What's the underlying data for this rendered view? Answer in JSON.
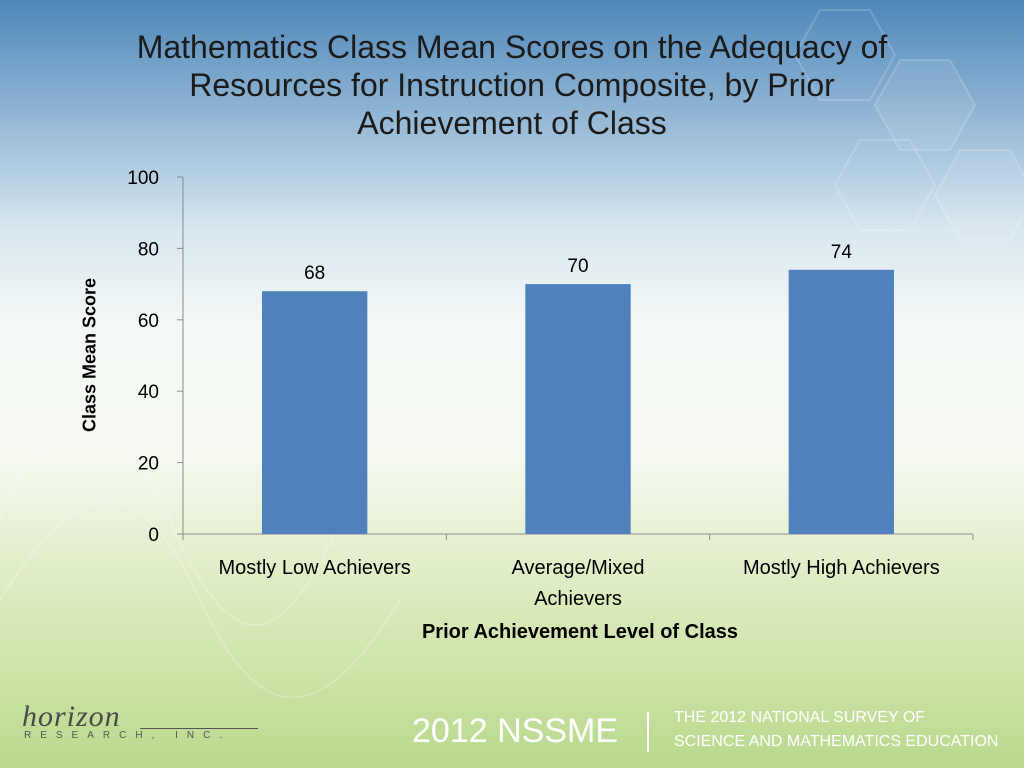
{
  "header": {
    "title_line1": "Mathematics Class Mean Scores on the Adequacy of",
    "title_line2": "Resources for Instruction Composite, by Prior",
    "title_line3": "Achievement of Class"
  },
  "chart_data": {
    "type": "bar",
    "title": "Mathematics Class Mean Scores on the Adequacy of Resources for Instruction Composite, by Prior Achievement of Class",
    "categories": [
      [
        "Mostly Low Achievers"
      ],
      [
        "Average/Mixed",
        "Achievers"
      ],
      [
        "Mostly High Achievers"
      ]
    ],
    "values": [
      68,
      70,
      74
    ],
    "data_labels": [
      "68",
      "70",
      "74"
    ],
    "xlabel": "Prior Achievement Level of Class",
    "ylabel": "Class Mean Score",
    "ylim": [
      0,
      100
    ],
    "yticks": [
      0,
      20,
      40,
      60,
      80,
      100
    ],
    "grid": false,
    "bar_color": "#4f81bd"
  },
  "footer": {
    "logo_script": "horizon",
    "logo_sub": "RESEARCH, INC.",
    "brand": "2012 NSSME",
    "survey_line1": "THE 2012 NATIONAL SURVEY OF",
    "survey_line2": "SCIENCE AND MATHEMATICS EDUCATION"
  }
}
